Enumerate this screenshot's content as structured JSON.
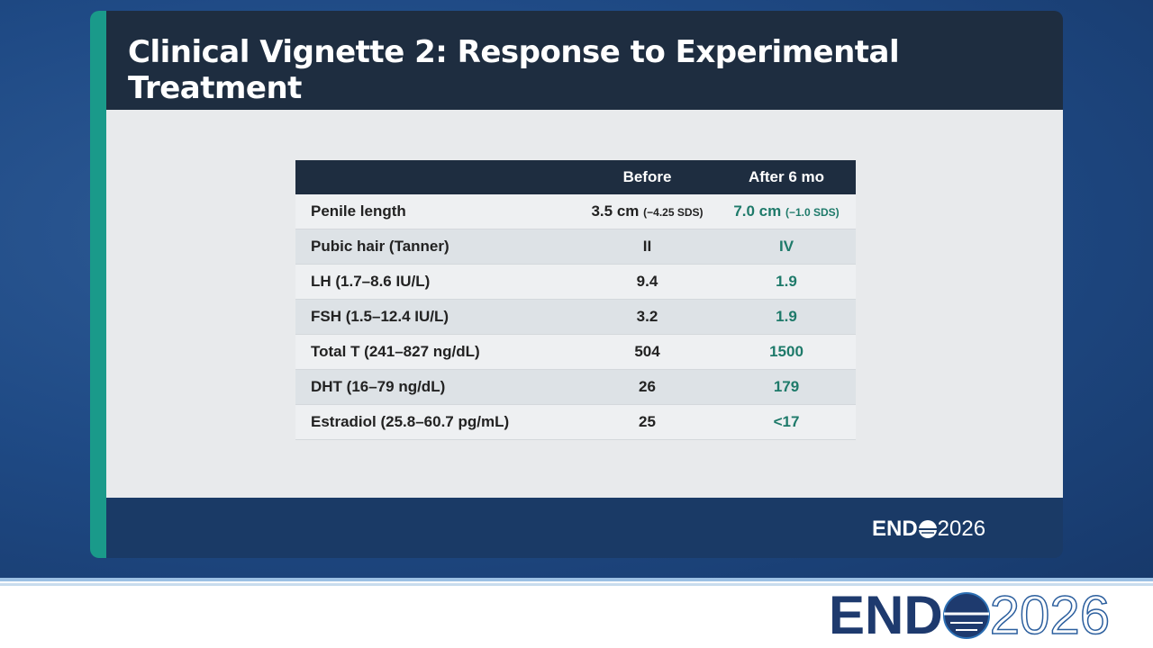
{
  "slide": {
    "title": "Clinical Vignette 2: Response to Experimental Treatment",
    "table": {
      "header": [
        "Before",
        "After 6 mo"
      ],
      "rows": [
        {
          "label": "Penile length",
          "before": "3.5 cm",
          "before_note": "(−4.25 SDS)",
          "after": "7.0 cm",
          "after_note": "(−1.0 SDS)"
        },
        {
          "label": "Pubic hair (Tanner)",
          "before": "II",
          "after": "IV"
        },
        {
          "label": "LH (1.7–8.6 IU/L)",
          "before": "9.4",
          "after": "1.9"
        },
        {
          "label": "FSH (1.5–12.4 IU/L)",
          "before": "3.2",
          "after": "1.9"
        },
        {
          "label": "Total T (241–827 ng/dL)",
          "before": "504",
          "after": "1500"
        },
        {
          "label": "DHT (16–79 ng/dL)",
          "before": "26",
          "after": "179"
        },
        {
          "label": "Estradiol (25.8–60.7 pg/mL)",
          "before": "25",
          "after": "<17"
        }
      ]
    },
    "logo": {
      "left": "END",
      "right": "2026"
    }
  },
  "footer": {
    "logo": {
      "left": "END",
      "right": "2026"
    }
  }
}
